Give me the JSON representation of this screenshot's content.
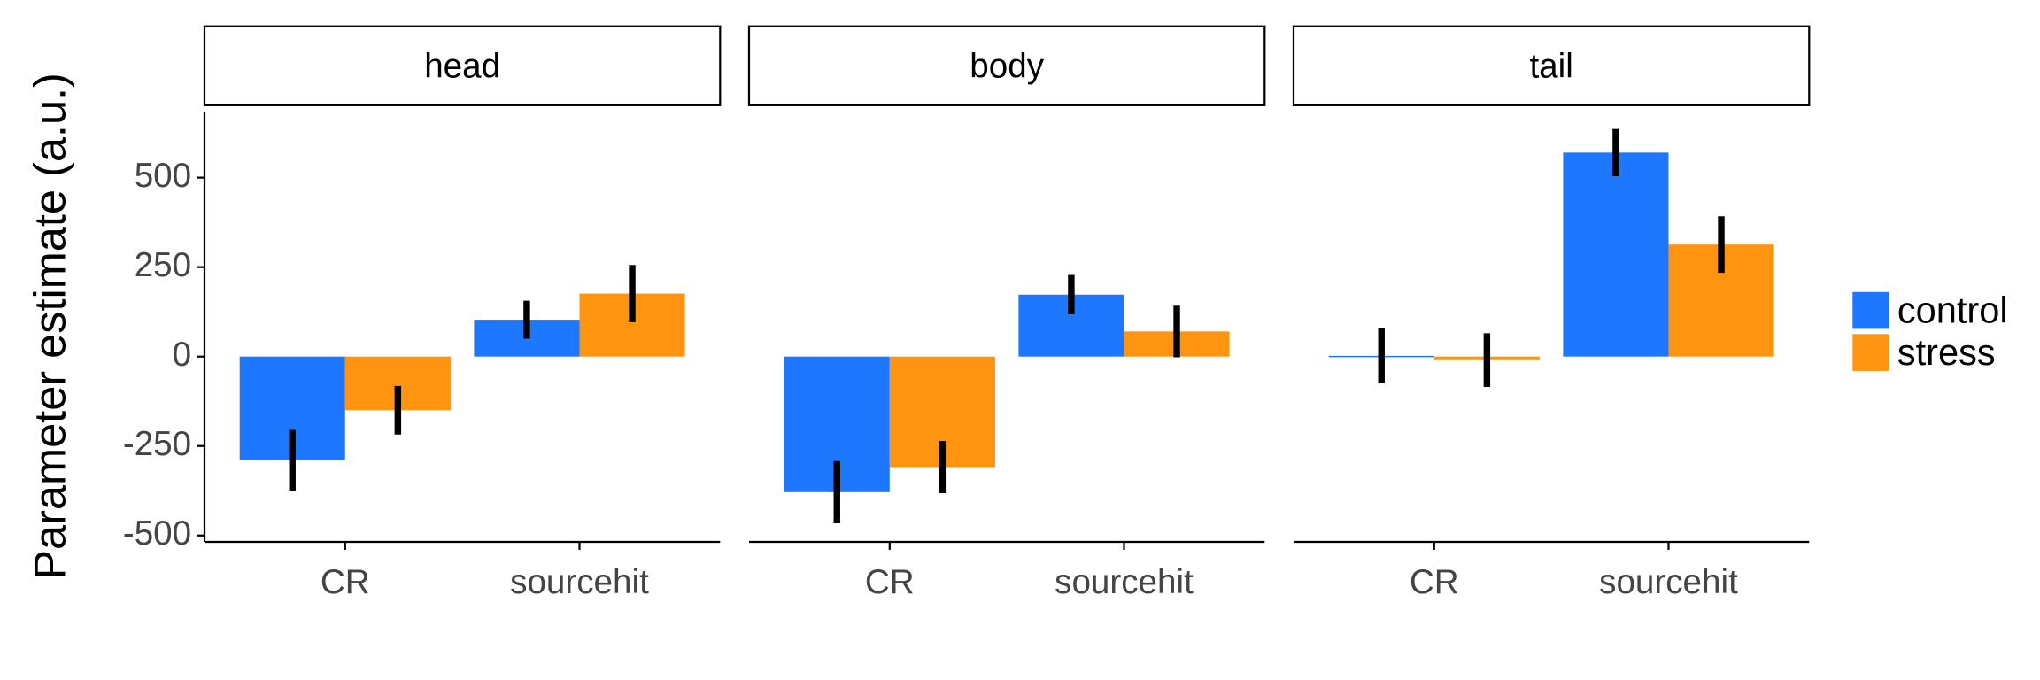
{
  "chart_data": {
    "type": "bar",
    "y_label": "Parameter estimate (a.u.)",
    "facets": [
      "head",
      "body",
      "tail"
    ],
    "categories": [
      "CR",
      "sourcehit"
    ],
    "series": [
      {
        "name": "control",
        "color": "#1e78ff",
        "values": [
          [
            -290,
            103
          ],
          [
            -379,
            173
          ],
          [
            2,
            570
          ]
        ],
        "errors": [
          [
            85,
            53
          ],
          [
            87,
            55
          ],
          [
            77,
            66
          ]
        ]
      },
      {
        "name": "stress",
        "color": "#ff9410",
        "values": [
          [
            -150,
            176
          ],
          [
            -309,
            70
          ],
          [
            -10,
            313
          ]
        ],
        "errors": [
          [
            68,
            80
          ],
          [
            73,
            72
          ],
          [
            75,
            79
          ]
        ]
      }
    ],
    "ylim": [
      -518,
      684
    ],
    "yticks": [
      -500,
      -250,
      0,
      250,
      500
    ],
    "legend": "right"
  }
}
